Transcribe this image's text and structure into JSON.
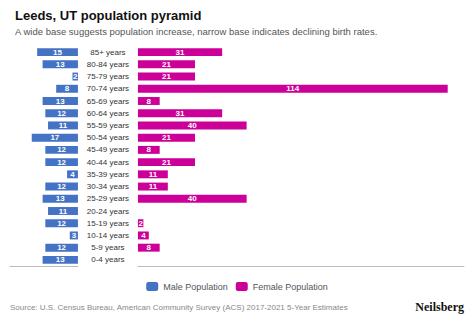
{
  "chart_data": {
    "type": "bar",
    "orientation": "horizontal",
    "title": "Leeds, UT population pyramid",
    "subtitle": "A wide base suggests population increase, narrow base indicates declining birth rates.",
    "source": "Source: U.S. Census Bureau, American Community Survey (ACS) 2017-2021 5-Year Estimates",
    "annotations": [
      "Neilsberg"
    ],
    "categories": [
      "0-4 years",
      "5-9 years",
      "10-14 years",
      "15-19 years",
      "20-24 years",
      "25-29 years",
      "30-34 years",
      "35-39 years",
      "40-44 years",
      "45-49 years",
      "50-54 years",
      "55-59 years",
      "60-64 years",
      "65-69 years",
      "70-74 years",
      "75-79 years",
      "80-84 years",
      "85+ years"
    ],
    "series": [
      {
        "name": "Male Population",
        "color": "#4472c4",
        "values": [
          13,
          12,
          3,
          12,
          11,
          13,
          12,
          4,
          12,
          12,
          17,
          11,
          12,
          13,
          8,
          2,
          13,
          15
        ]
      },
      {
        "name": "Female Population",
        "color": "#cc0099",
        "values": [
          0,
          8,
          4,
          2,
          0,
          40,
          11,
          11,
          21,
          8,
          21,
          40,
          31,
          8,
          114,
          21,
          21,
          31
        ],
        "value_labels": [
          null,
          "8",
          "4",
          "2",
          null,
          "40",
          "11",
          "11",
          "21",
          "8",
          "21",
          "40",
          "31",
          "8",
          "114",
          "21",
          "21",
          "31"
        ]
      }
    ],
    "xlim": [
      -25,
      120
    ],
    "tick_labels": "y",
    "data_labels": true,
    "grid": false,
    "legend": "bottom"
  }
}
